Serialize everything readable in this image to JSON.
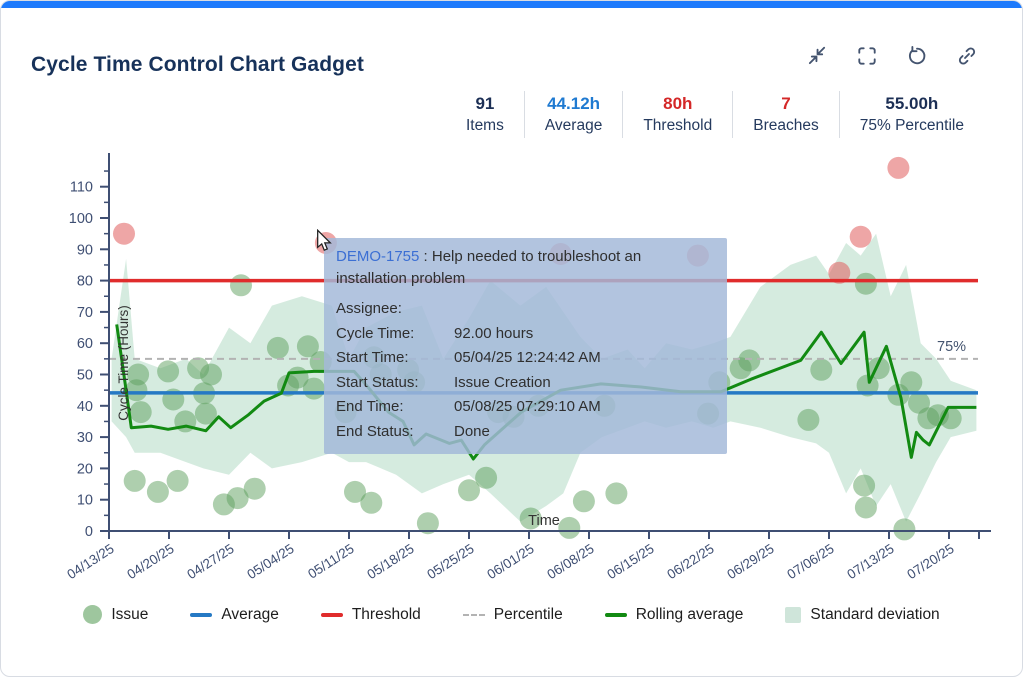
{
  "header": {
    "title": "Cycle Time Control Chart Gadget",
    "actions": [
      {
        "name": "collapse",
        "icon": "collapse-icon"
      },
      {
        "name": "fullscreen",
        "icon": "fullscreen-icon"
      },
      {
        "name": "refresh",
        "icon": "refresh-icon"
      },
      {
        "name": "copy-link",
        "icon": "link-icon"
      }
    ]
  },
  "stats": [
    {
      "value": "91",
      "label": "Items",
      "color": "navy"
    },
    {
      "value": "44.12h",
      "label": "Average",
      "color": "blue"
    },
    {
      "value": "80h",
      "label": "Threshold",
      "color": "red"
    },
    {
      "value": "7",
      "label": "Breaches",
      "color": "red"
    },
    {
      "value": "55.00h",
      "label": "75% Percentile",
      "color": "navy"
    }
  ],
  "tooltip": {
    "issue_key": "DEMO-1755",
    "summary": " : Help needed to troubleshoot an installation problem",
    "rows": [
      {
        "label": "Assignee:",
        "value": ""
      },
      {
        "label": "Cycle Time:",
        "value": "92.00 hours"
      },
      {
        "label": "Start Time:",
        "value": "05/04/25 12:24:42 AM"
      },
      {
        "label": "Start Status:",
        "value": "Issue Creation"
      },
      {
        "label": "End Time:",
        "value": "05/08/25 07:29:10 AM"
      },
      {
        "label": "End Status:",
        "value": "Done"
      }
    ]
  },
  "legend": [
    {
      "label": "Issue",
      "marker": "issue"
    },
    {
      "label": "Average",
      "marker": "average"
    },
    {
      "label": "Threshold",
      "marker": "threshold"
    },
    {
      "label": "Percentile",
      "marker": "percentile"
    },
    {
      "label": "Rolling average",
      "marker": "band_line"
    },
    {
      "label": "Standard deviation",
      "marker": "band"
    }
  ],
  "colors": {
    "accent": "#1d7afc",
    "navy": "#1c2f55",
    "blue": "#1f7ad1",
    "red": "#d42828",
    "threshold": "#e02c2c",
    "average": "#2579c4",
    "rolling": "#128a12",
    "issue": "#5da05d",
    "breach": "#e05c5c",
    "band": "#b9ddca",
    "percentile": "#b3b3b3",
    "axis": "#3f4f73",
    "label": "#333333",
    "link": "#3b6fd4"
  },
  "chart_data": {
    "type": "scatter",
    "xlabel": "Time",
    "ylabel": "Cycle Time (Hours)",
    "ylim": [
      0,
      117
    ],
    "y_ticks": [
      0,
      10,
      20,
      30,
      40,
      50,
      60,
      70,
      80,
      90,
      100,
      110
    ],
    "x_ticks": [
      "04/13/25",
      "04/20/25",
      "04/27/25",
      "05/04/25",
      "05/11/25",
      "05/18/25",
      "05/25/25",
      "06/01/25",
      "06/08/25",
      "06/15/25",
      "06/22/25",
      "06/29/25",
      "07/06/25",
      "07/13/25",
      "07/20/25"
    ],
    "days_per_tick": 7,
    "average": 44.12,
    "threshold": 80,
    "percentile_value": 55,
    "percentile_label": "75%",
    "issues": [
      [
        3.0,
        16
      ],
      [
        3.2,
        45
      ],
      [
        3.4,
        50
      ],
      [
        3.7,
        38
      ],
      [
        5.7,
        12.5
      ],
      [
        6.9,
        51
      ],
      [
        7.5,
        42
      ],
      [
        8.0,
        16
      ],
      [
        8.9,
        35
      ],
      [
        10.4,
        52
      ],
      [
        11.1,
        44
      ],
      [
        11.3,
        37.5
      ],
      [
        11.9,
        50
      ],
      [
        13.4,
        8.5
      ],
      [
        15.0,
        10.5
      ],
      [
        15.4,
        78.5
      ],
      [
        17.0,
        13.5
      ],
      [
        19.7,
        58.5
      ],
      [
        20.9,
        46.5
      ],
      [
        22.0,
        49
      ],
      [
        23.2,
        59
      ],
      [
        23.9,
        45.5
      ],
      [
        24.7,
        54
      ],
      [
        27.6,
        38
      ],
      [
        28.7,
        12.5
      ],
      [
        30.6,
        9
      ],
      [
        30.9,
        55.5
      ],
      [
        31.7,
        50
      ],
      [
        34.9,
        51.5
      ],
      [
        35.6,
        47.5
      ],
      [
        37.2,
        2.5
      ],
      [
        42.0,
        13
      ],
      [
        44.0,
        17
      ],
      [
        45.4,
        38
      ],
      [
        47.2,
        36.5
      ],
      [
        49.2,
        4
      ],
      [
        50.1,
        40
      ],
      [
        53.7,
        1
      ],
      [
        55.4,
        9.5
      ],
      [
        57.8,
        40
      ],
      [
        59.2,
        12
      ],
      [
        69.9,
        37.5
      ],
      [
        71.2,
        47.5
      ],
      [
        73.7,
        52
      ],
      [
        74.7,
        54.5
      ],
      [
        81.6,
        35.5
      ],
      [
        83.1,
        51.5
      ],
      [
        88.1,
        14.5
      ],
      [
        88.3,
        7.5
      ],
      [
        88.3,
        79
      ],
      [
        88.5,
        46.5
      ],
      [
        89.8,
        52
      ],
      [
        92.1,
        43.5
      ],
      [
        92.8,
        0.5
      ],
      [
        93.6,
        47.5
      ],
      [
        94.5,
        41
      ],
      [
        95.6,
        36
      ],
      [
        96.7,
        37
      ],
      [
        98.2,
        36
      ]
    ],
    "breaches": [
      [
        1.75,
        95
      ],
      [
        25.3,
        92
      ],
      [
        52.7,
        88.5
      ],
      [
        68.7,
        88
      ],
      [
        85.2,
        82.5
      ],
      [
        87.7,
        94
      ],
      [
        92.1,
        116
      ]
    ],
    "rolling_average": [
      [
        0.9,
        66
      ],
      [
        2.0,
        45
      ],
      [
        2.6,
        33
      ],
      [
        4.9,
        33.5
      ],
      [
        6.9,
        32.5
      ],
      [
        9.0,
        33.5
      ],
      [
        11.3,
        32
      ],
      [
        12.8,
        36.5
      ],
      [
        14.2,
        33
      ],
      [
        16.2,
        37
      ],
      [
        18.1,
        41.5
      ],
      [
        20.1,
        44
      ],
      [
        21.0,
        50.5
      ],
      [
        23.9,
        51
      ],
      [
        28.6,
        51
      ],
      [
        30.2,
        46
      ],
      [
        32.6,
        38
      ],
      [
        34.3,
        35
      ],
      [
        35.6,
        27.5
      ],
      [
        37.0,
        31
      ],
      [
        39.7,
        28
      ],
      [
        41.1,
        29
      ],
      [
        42.5,
        23
      ],
      [
        43.8,
        27.5
      ],
      [
        48.1,
        38
      ],
      [
        52.7,
        45
      ],
      [
        57.4,
        47
      ],
      [
        62.1,
        46
      ],
      [
        66.7,
        44.5
      ],
      [
        71.4,
        44.5
      ],
      [
        74.9,
        48.5
      ],
      [
        80.7,
        54.5
      ],
      [
        83.1,
        63.5
      ],
      [
        85.4,
        53.5
      ],
      [
        88.1,
        63.5
      ],
      [
        88.7,
        47.5
      ],
      [
        90.7,
        59
      ],
      [
        92.4,
        42.5
      ],
      [
        93.6,
        23.5
      ],
      [
        94.2,
        31.5
      ],
      [
        95.0,
        29
      ],
      [
        95.7,
        27.5
      ],
      [
        97.9,
        39.5
      ],
      [
        101.2,
        39.5
      ]
    ],
    "std_dev_band": {
      "upper": [
        [
          0.3,
          55
        ],
        [
          2,
          87
        ],
        [
          3,
          55
        ],
        [
          6,
          52
        ],
        [
          9,
          55
        ],
        [
          11,
          50
        ],
        [
          14,
          65
        ],
        [
          16.5,
          60
        ],
        [
          19,
          72
        ],
        [
          22.5,
          75
        ],
        [
          26,
          72
        ],
        [
          28,
          55
        ],
        [
          30,
          65
        ],
        [
          33.5,
          70
        ],
        [
          36.5,
          72
        ],
        [
          39,
          55
        ],
        [
          42,
          68
        ],
        [
          44.5,
          80
        ],
        [
          48,
          72
        ],
        [
          51,
          78
        ],
        [
          53,
          70
        ],
        [
          55,
          62
        ],
        [
          57.5,
          55
        ],
        [
          60.5,
          58
        ],
        [
          62.5,
          52
        ],
        [
          65,
          60
        ],
        [
          68,
          58
        ],
        [
          70.5,
          60
        ],
        [
          72.5,
          62
        ],
        [
          76,
          78
        ],
        [
          79.5,
          85
        ],
        [
          82.5,
          88
        ],
        [
          84,
          82
        ],
        [
          86,
          92
        ],
        [
          87.7,
          88
        ],
        [
          89.5,
          95
        ],
        [
          91.2,
          75
        ],
        [
          93,
          85
        ],
        [
          94.7,
          60
        ],
        [
          96.5,
          55
        ],
        [
          98.2,
          48
        ],
        [
          101.2,
          45
        ]
      ],
      "lower": [
        [
          0.3,
          35
        ],
        [
          2,
          30
        ],
        [
          3,
          25
        ],
        [
          6,
          25
        ],
        [
          9,
          22
        ],
        [
          11,
          20
        ],
        [
          14,
          18
        ],
        [
          16.5,
          25
        ],
        [
          19,
          20
        ],
        [
          22.5,
          22
        ],
        [
          26,
          25
        ],
        [
          28,
          22
        ],
        [
          30,
          22
        ],
        [
          33.5,
          18
        ],
        [
          36.5,
          12
        ],
        [
          39,
          15
        ],
        [
          42,
          18
        ],
        [
          44.5,
          12
        ],
        [
          48,
          3
        ],
        [
          51,
          8
        ],
        [
          53,
          12
        ],
        [
          55,
          25
        ],
        [
          57.5,
          30
        ],
        [
          60.5,
          33
        ],
        [
          62.5,
          35
        ],
        [
          65,
          33
        ],
        [
          68,
          35
        ],
        [
          70.5,
          33
        ],
        [
          72.5,
          35
        ],
        [
          76,
          33
        ],
        [
          79.5,
          30
        ],
        [
          82.5,
          28
        ],
        [
          84,
          25
        ],
        [
          86,
          12
        ],
        [
          87.7,
          20
        ],
        [
          89.5,
          8
        ],
        [
          91.2,
          15
        ],
        [
          93,
          3
        ],
        [
          94.7,
          12
        ],
        [
          96.5,
          22
        ],
        [
          98.2,
          30
        ],
        [
          101.2,
          32
        ]
      ]
    }
  }
}
